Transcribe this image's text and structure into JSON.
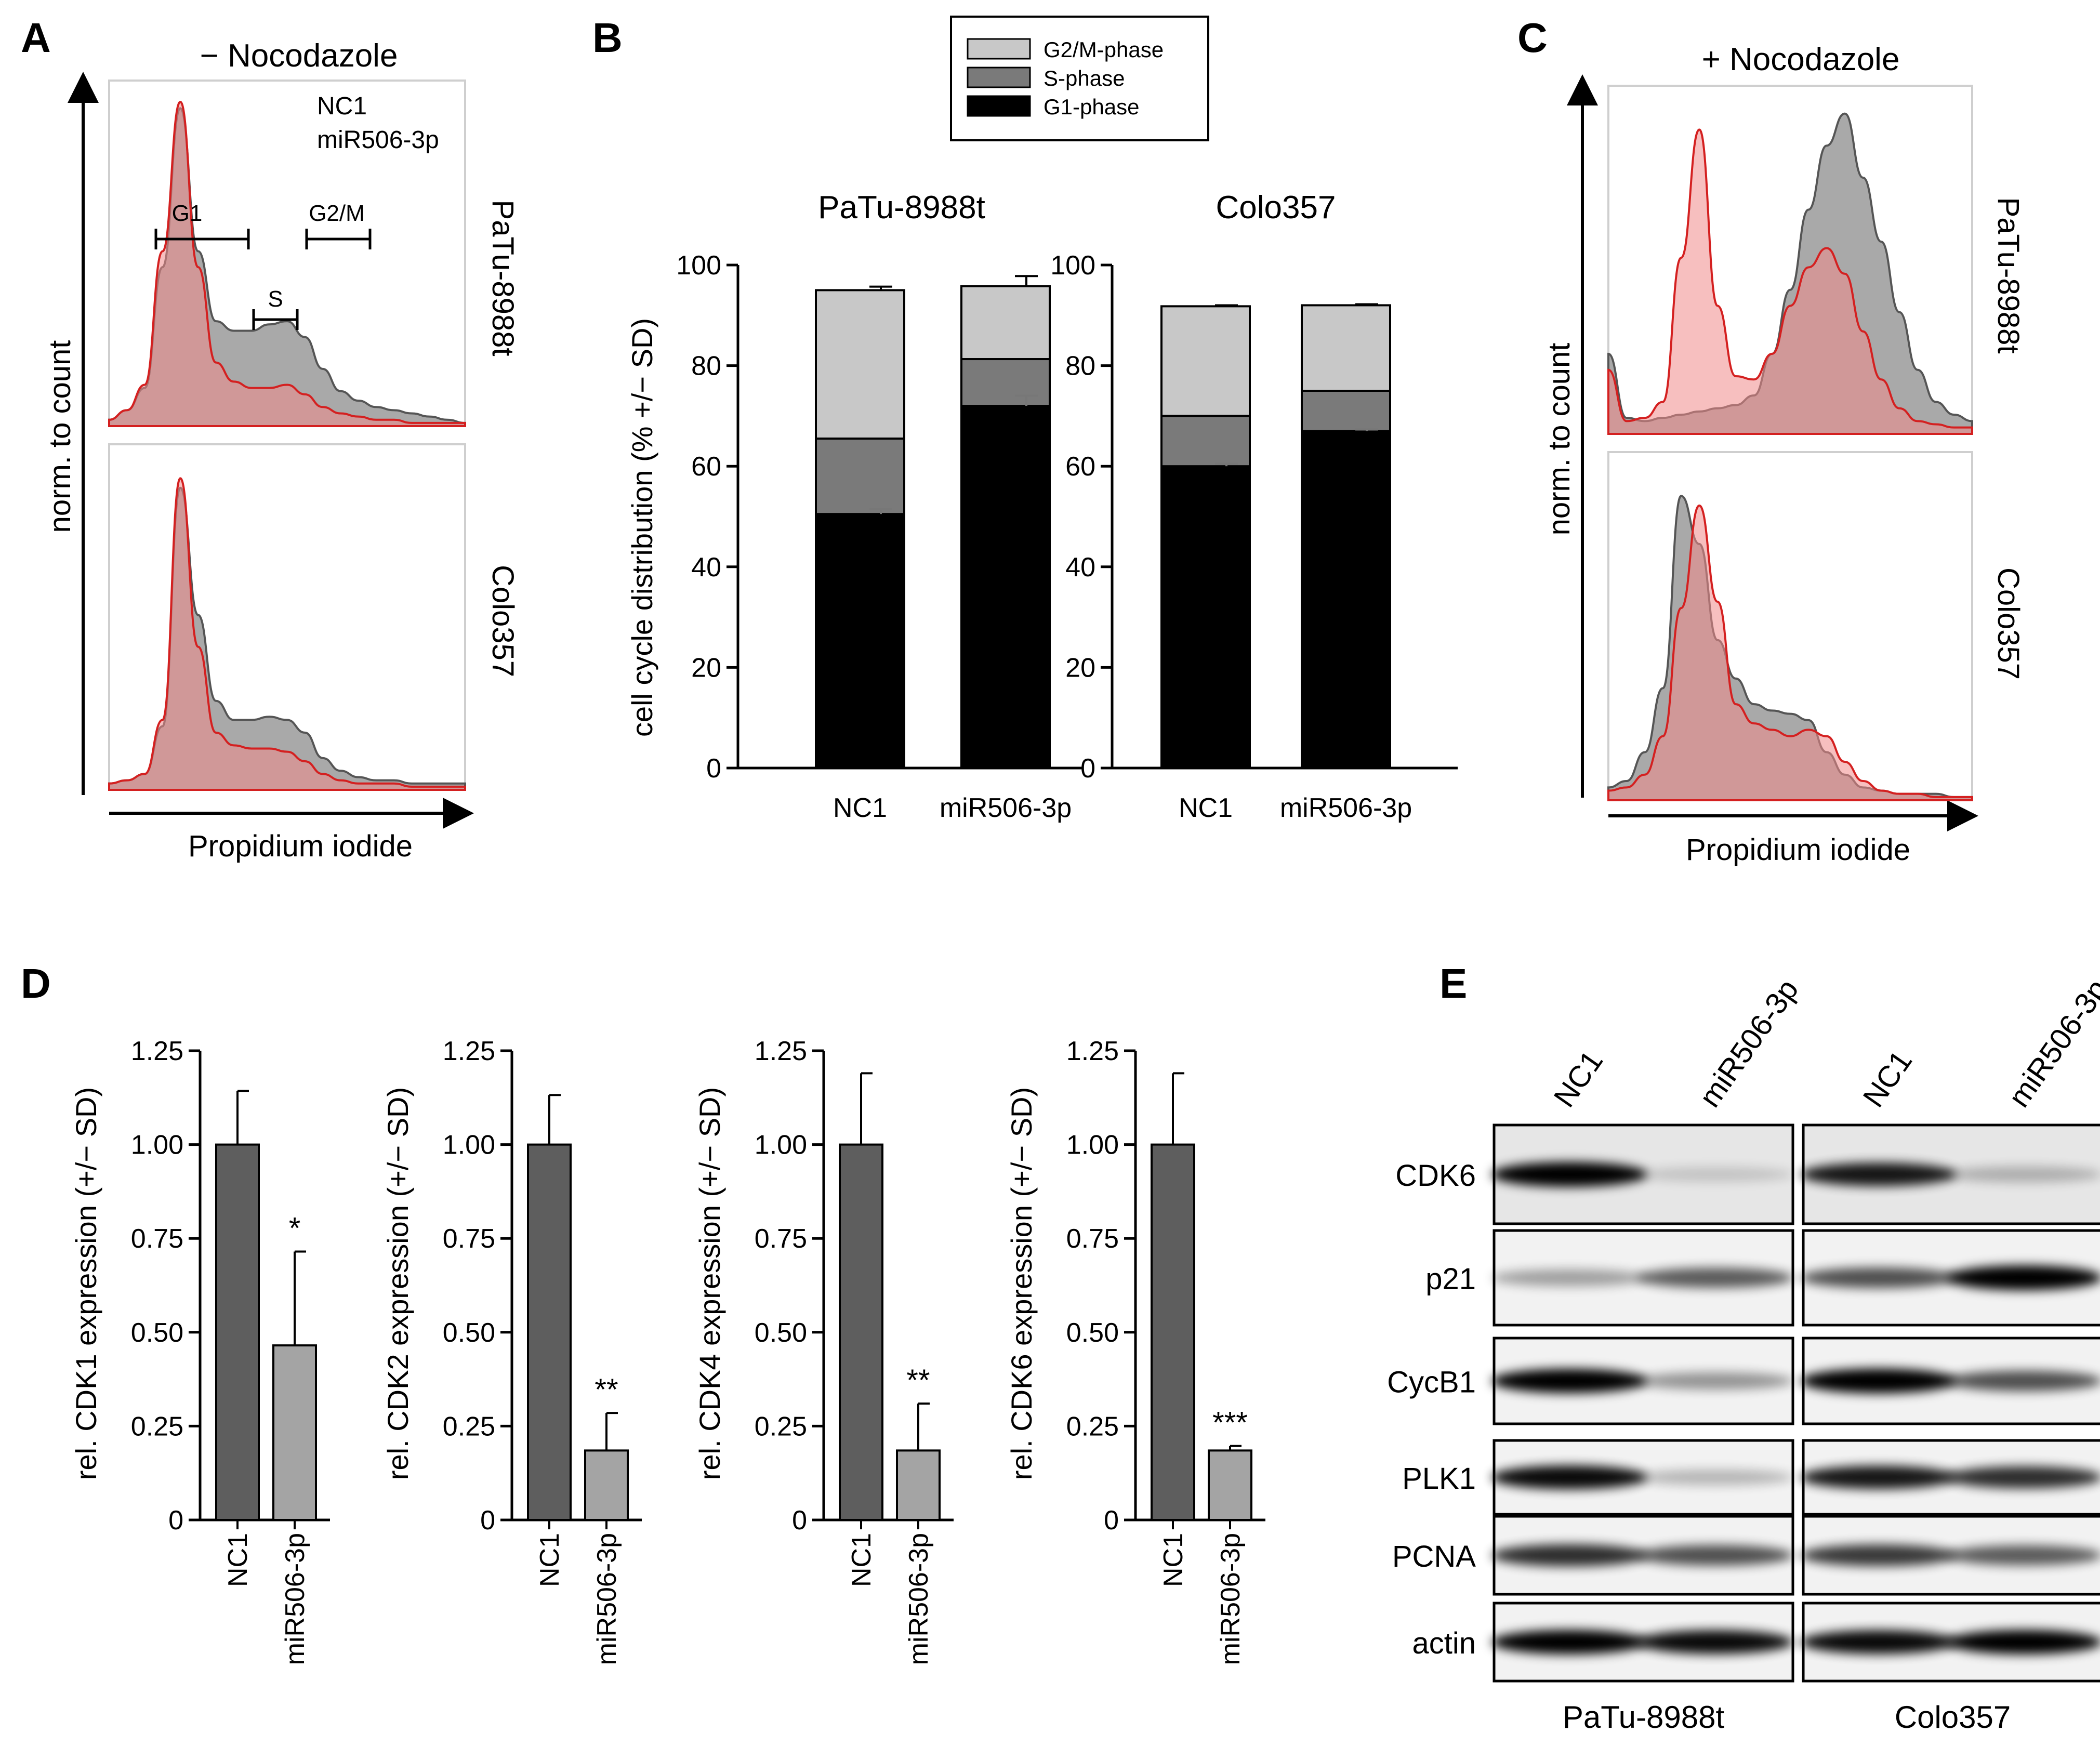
{
  "colors": {
    "nc1_fill": "#9a9a9a",
    "nc1_line": "#555555",
    "mir_fill": "#f08a8a",
    "mir_line": "#d42020",
    "g2m": "#c8c8c8",
    "s": "#7a7a7a",
    "g1": "#000000",
    "bar_dark": "#5e5e5e",
    "bar_light": "#a4a4a4",
    "text_red": "#e0201e"
  },
  "panel_letters": {
    "a": "A",
    "b": "B",
    "c": "C",
    "d": "D",
    "e": "E"
  },
  "chart_data": [
    {
      "id": "A",
      "type": "area",
      "title": "− Nocodazole",
      "xlabel": "Propidium iodide",
      "ylabel": "norm. to count",
      "legend": {
        "nc1": "NC1",
        "mir": "miR506-3p"
      },
      "gates": {
        "g1": "G1",
        "s": "S",
        "g2m": "G2/M"
      },
      "rows": [
        {
          "name": "PaTu-8988t",
          "x": [
            0,
            0.05,
            0.1,
            0.15,
            0.2,
            0.25,
            0.3,
            0.35,
            0.4,
            0.45,
            0.5,
            0.55,
            0.6,
            0.65,
            0.7,
            0.75,
            0.8,
            0.85,
            0.9,
            0.95,
            1.0
          ],
          "nc1": [
            0.02,
            0.05,
            0.12,
            0.5,
            1.0,
            0.55,
            0.33,
            0.3,
            0.3,
            0.32,
            0.33,
            0.28,
            0.18,
            0.11,
            0.08,
            0.06,
            0.05,
            0.04,
            0.03,
            0.02,
            0.01
          ],
          "mir": [
            0.02,
            0.05,
            0.13,
            0.55,
            1.02,
            0.5,
            0.2,
            0.14,
            0.12,
            0.12,
            0.13,
            0.1,
            0.06,
            0.04,
            0.03,
            0.02,
            0.02,
            0.01,
            0.01,
            0.01,
            0.01
          ]
        },
        {
          "name": "Colo357",
          "x": [
            0,
            0.05,
            0.1,
            0.15,
            0.2,
            0.25,
            0.3,
            0.35,
            0.4,
            0.45,
            0.5,
            0.55,
            0.6,
            0.65,
            0.7,
            0.75,
            0.8,
            0.85,
            0.9,
            0.95,
            1.0
          ],
          "nc1": [
            0.02,
            0.03,
            0.05,
            0.2,
            0.95,
            0.55,
            0.28,
            0.22,
            0.22,
            0.23,
            0.22,
            0.18,
            0.1,
            0.06,
            0.04,
            0.03,
            0.03,
            0.02,
            0.02,
            0.02,
            0.02
          ],
          "mir": [
            0.02,
            0.03,
            0.05,
            0.22,
            0.98,
            0.45,
            0.18,
            0.14,
            0.13,
            0.13,
            0.12,
            0.09,
            0.05,
            0.03,
            0.02,
            0.02,
            0.02,
            0.01,
            0.01,
            0.01,
            0.01
          ]
        }
      ]
    },
    {
      "id": "B",
      "type": "bar",
      "ylabel": "cell cycle distribution (% +/− SD)",
      "ylim": [
        0,
        100
      ],
      "yticks": [
        "0",
        "20",
        "40",
        "60",
        "80",
        "100"
      ],
      "legend": [
        "G2/M-phase",
        "S-phase",
        "G1-phase"
      ],
      "subplots": [
        {
          "title": "PaTu-8988t",
          "categories": [
            "NC1",
            "miR506-3p"
          ],
          "g1": [
            50.5,
            72
          ],
          "s": [
            15,
            9.3
          ],
          "g2m": [
            29.5,
            14.5
          ],
          "err_g1": [
            1,
            2
          ],
          "err_total": [
            0.7,
            2
          ]
        },
        {
          "title": "Colo357",
          "categories": [
            "NC1",
            "miR506-3p"
          ],
          "g1": [
            60,
            67
          ],
          "s": [
            10,
            8
          ],
          "g2m": [
            21.8,
            17
          ],
          "err_g1": [
            0.5,
            0.3
          ],
          "err_total": [
            0.2,
            0.2
          ]
        }
      ]
    },
    {
      "id": "C",
      "type": "area",
      "title": "+ Nocodazole",
      "xlabel": "Propidium iodide",
      "ylabel": "norm. to count",
      "rows": [
        {
          "name": "PaTu-8988t",
          "x": [
            0,
            0.05,
            0.1,
            0.15,
            0.2,
            0.25,
            0.3,
            0.35,
            0.4,
            0.45,
            0.5,
            0.55,
            0.6,
            0.65,
            0.7,
            0.75,
            0.8,
            0.85,
            0.9,
            0.95,
            1.0
          ],
          "nc1": [
            0.25,
            0.05,
            0.04,
            0.05,
            0.06,
            0.07,
            0.08,
            0.09,
            0.12,
            0.25,
            0.45,
            0.7,
            0.9,
            1.0,
            0.8,
            0.6,
            0.38,
            0.2,
            0.1,
            0.06,
            0.04
          ],
          "mir": [
            0.2,
            0.04,
            0.05,
            0.1,
            0.55,
            0.95,
            0.4,
            0.18,
            0.17,
            0.25,
            0.4,
            0.52,
            0.58,
            0.5,
            0.32,
            0.17,
            0.08,
            0.04,
            0.03,
            0.02,
            0.02
          ]
        },
        {
          "name": "Colo357",
          "x": [
            0,
            0.05,
            0.1,
            0.15,
            0.2,
            0.25,
            0.3,
            0.35,
            0.4,
            0.45,
            0.5,
            0.55,
            0.6,
            0.65,
            0.7,
            0.75,
            0.8,
            0.85,
            0.9,
            0.95,
            1.0
          ],
          "nc1": [
            0.04,
            0.06,
            0.15,
            0.35,
            0.95,
            0.8,
            0.5,
            0.38,
            0.3,
            0.28,
            0.27,
            0.25,
            0.15,
            0.08,
            0.04,
            0.03,
            0.02,
            0.02,
            0.02,
            0.01,
            0.01
          ],
          "mir": [
            0.03,
            0.04,
            0.08,
            0.2,
            0.6,
            0.92,
            0.62,
            0.3,
            0.24,
            0.22,
            0.2,
            0.22,
            0.2,
            0.12,
            0.06,
            0.03,
            0.02,
            0.02,
            0.01,
            0.01,
            0.01
          ]
        }
      ]
    },
    {
      "id": "D",
      "type": "bar",
      "ylim": [
        0,
        1.25
      ],
      "yticks": [
        "0",
        "0.25",
        "0.50",
        "0.75",
        "1.00",
        "1.25"
      ],
      "subplots": [
        {
          "ylabel": "rel. CDK1 expression (+/− SD)",
          "categories": [
            "NC1",
            "miR506-3p"
          ],
          "values": [
            1.0,
            0.465
          ],
          "errors": [
            0.143,
            0.25
          ],
          "sig": [
            "",
            "*"
          ]
        },
        {
          "ylabel": "rel. CDK2 expression (+/− SD)",
          "categories": [
            "NC1",
            "miR506-3p"
          ],
          "values": [
            1.0,
            0.185
          ],
          "errors": [
            0.132,
            0.1
          ],
          "sig": [
            "",
            "**"
          ]
        },
        {
          "ylabel": "rel. CDK4 expression (+/− SD)",
          "categories": [
            "NC1",
            "miR506-3p"
          ],
          "values": [
            1.0,
            0.185
          ],
          "errors": [
            0.19,
            0.125
          ],
          "sig": [
            "",
            "**"
          ]
        },
        {
          "ylabel": "rel. CDK6 expression (+/− SD)",
          "categories": [
            "NC1",
            "miR506-3p"
          ],
          "values": [
            1.0,
            0.185
          ],
          "errors": [
            0.19,
            0.012
          ],
          "sig": [
            "",
            "***"
          ]
        }
      ]
    },
    {
      "id": "E",
      "type": "table",
      "cell_lines": [
        "PaTu-8988t",
        "Colo357"
      ],
      "lanes": [
        "NC1",
        "miR506-3p"
      ],
      "proteins": [
        "CDK6",
        "p21",
        "CycB1",
        "PLK1",
        "PCNA",
        "actin"
      ],
      "band_intensity": {
        "PaTu-8988t": [
          [
            1.0,
            0.05
          ],
          [
            0.25,
            0.55
          ],
          [
            0.95,
            0.3
          ],
          [
            0.9,
            0.15
          ],
          [
            0.75,
            0.6
          ],
          [
            0.95,
            0.9
          ]
        ],
        "Colo357": [
          [
            0.85,
            0.15
          ],
          [
            0.6,
            1.0
          ],
          [
            1.0,
            0.6
          ],
          [
            0.85,
            0.75
          ],
          [
            0.7,
            0.55
          ],
          [
            0.9,
            0.95
          ]
        ]
      }
    }
  ]
}
